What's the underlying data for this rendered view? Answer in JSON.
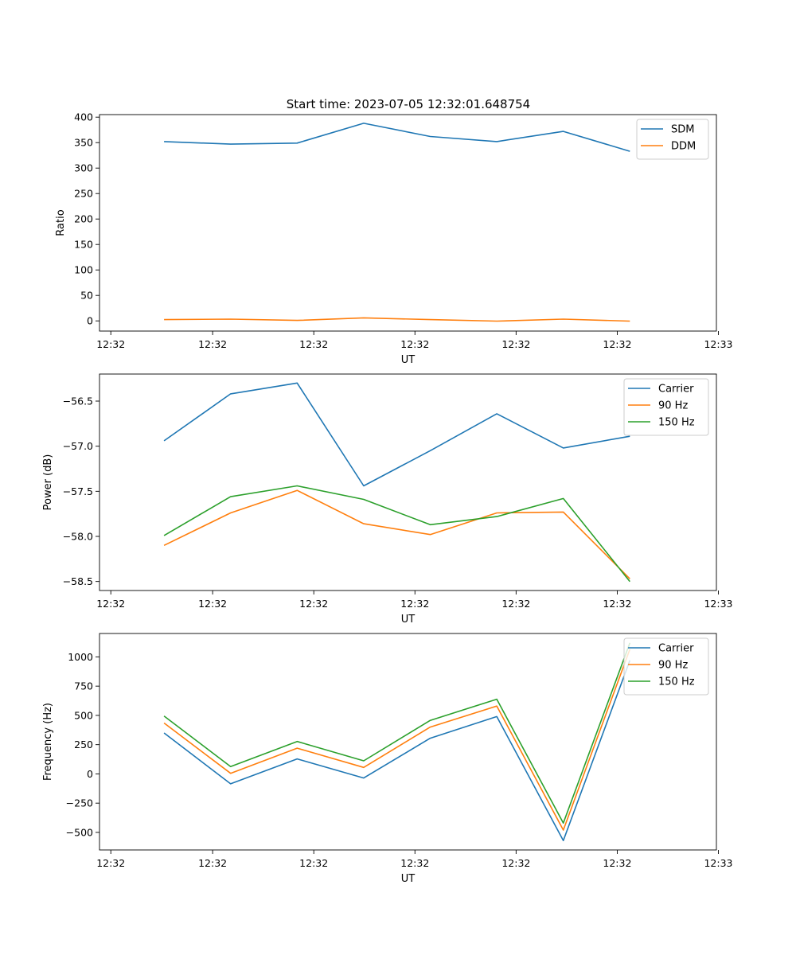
{
  "figure": {
    "title": "Start time: 2023-07-05 12:32:01.648754"
  },
  "colors": {
    "series_1": "#1f77b4",
    "series_2": "#ff7f0e",
    "series_3": "#2ca02c"
  },
  "chart_data": [
    {
      "id": "ratio",
      "type": "line",
      "title": "Start time: 2023-07-05 12:32:01.648754",
      "xlabel": "UT",
      "ylabel": "Ratio",
      "x": [
        1,
        2,
        3,
        4,
        5,
        6,
        7,
        8
      ],
      "xlim": [
        0.03,
        9.3
      ],
      "x_ticks": [
        0.2,
        1.73,
        3.25,
        4.77,
        6.29,
        7.81,
        9.33
      ],
      "x_tick_labels": [
        "12:32",
        "12:32",
        "12:32",
        "12:32",
        "12:32",
        "12:32",
        "12:33"
      ],
      "ylim": [
        -20,
        405
      ],
      "y_ticks": [
        0,
        50,
        100,
        150,
        200,
        250,
        300,
        350,
        400
      ],
      "y_tick_labels": [
        "0",
        "50",
        "100",
        "150",
        "200",
        "250",
        "300",
        "350",
        "400"
      ],
      "legend": "top-right",
      "series": [
        {
          "name": "SDM",
          "values": [
            352,
            347,
            349,
            388,
            362,
            352,
            372,
            333
          ]
        },
        {
          "name": "DDM",
          "values": [
            2.5,
            3.5,
            1,
            6,
            2.5,
            -0.5,
            3.5,
            -0.5
          ]
        }
      ]
    },
    {
      "id": "power",
      "type": "line",
      "title": "",
      "xlabel": "UT",
      "ylabel": "Power (dB)",
      "x": [
        1,
        2,
        3,
        4,
        5,
        6,
        7,
        8
      ],
      "xlim": [
        0.03,
        9.3
      ],
      "x_ticks": [
        0.2,
        1.73,
        3.25,
        4.77,
        6.29,
        7.81,
        9.33
      ],
      "x_tick_labels": [
        "12:32",
        "12:32",
        "12:32",
        "12:32",
        "12:32",
        "12:32",
        "12:33"
      ],
      "ylim": [
        -58.6,
        -56.2
      ],
      "y_ticks": [
        -58.5,
        -58.0,
        -57.5,
        -57.0,
        -56.5
      ],
      "y_tick_labels": [
        "−58.5",
        "−58.0",
        "−57.5",
        "−57.0",
        "−56.5"
      ],
      "legend": "top-right",
      "series": [
        {
          "name": "Carrier",
          "values": [
            -56.94,
            -56.42,
            -56.3,
            -57.44,
            -57.05,
            -56.64,
            -57.02,
            -56.89
          ]
        },
        {
          "name": "90 Hz",
          "values": [
            -58.1,
            -57.74,
            -57.49,
            -57.86,
            -57.98,
            -57.74,
            -57.73,
            -58.47
          ]
        },
        {
          "name": "150 Hz",
          "values": [
            -57.99,
            -57.56,
            -57.44,
            -57.59,
            -57.87,
            -57.78,
            -57.58,
            -58.5
          ]
        }
      ]
    },
    {
      "id": "frequency",
      "type": "line",
      "title": "",
      "xlabel": "UT",
      "ylabel": "Frequency (Hz)",
      "x": [
        1,
        2,
        3,
        4,
        5,
        6,
        7,
        8
      ],
      "xlim": [
        0.03,
        9.3
      ],
      "x_ticks": [
        0.2,
        1.73,
        3.25,
        4.77,
        6.29,
        7.81,
        9.33
      ],
      "x_tick_labels": [
        "12:32",
        "12:32",
        "12:32",
        "12:32",
        "12:32",
        "12:32",
        "12:33"
      ],
      "ylim": [
        -650,
        1200
      ],
      "y_ticks": [
        -500,
        -250,
        0,
        250,
        500,
        750,
        1000
      ],
      "y_tick_labels": [
        "−500",
        "−250",
        "0",
        "250",
        "500",
        "750",
        "1000"
      ],
      "legend": "top-right",
      "series": [
        {
          "name": "Carrier",
          "values": [
            350,
            -85,
            128,
            -35,
            305,
            490,
            -570,
            970
          ]
        },
        {
          "name": "90 Hz",
          "values": [
            435,
            5,
            220,
            55,
            400,
            580,
            -480,
            1065
          ]
        },
        {
          "name": "150 Hz",
          "values": [
            495,
            63,
            277,
            112,
            457,
            638,
            -420,
            1120
          ]
        }
      ]
    }
  ]
}
